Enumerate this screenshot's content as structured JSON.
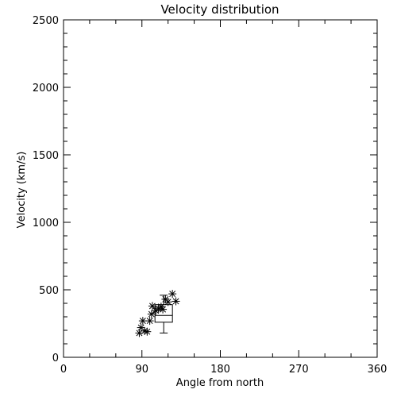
{
  "chart_data": {
    "type": "scatter",
    "title": "Velocity distribution",
    "xlabel": "Angle from north",
    "ylabel": "Velocity (km/s)",
    "xlim": [
      0,
      360
    ],
    "ylim": [
      0,
      2500
    ],
    "xticks": [
      "0",
      "90",
      "180",
      "270",
      "360"
    ],
    "yticks": [
      "0",
      "500",
      "1000",
      "1500",
      "2000",
      "2500"
    ],
    "grid": false,
    "marker": "asterisk",
    "points": [
      {
        "x": 87,
        "y": 180
      },
      {
        "x": 89,
        "y": 220
      },
      {
        "x": 91,
        "y": 270
      },
      {
        "x": 93,
        "y": 195
      },
      {
        "x": 96,
        "y": 190
      },
      {
        "x": 99,
        "y": 270
      },
      {
        "x": 101,
        "y": 320
      },
      {
        "x": 102,
        "y": 380
      },
      {
        "x": 106,
        "y": 345
      },
      {
        "x": 109,
        "y": 360
      },
      {
        "x": 112,
        "y": 375
      },
      {
        "x": 114,
        "y": 355
      },
      {
        "x": 117,
        "y": 430
      },
      {
        "x": 120,
        "y": 410
      },
      {
        "x": 125,
        "y": 470
      },
      {
        "x": 129,
        "y": 415
      }
    ],
    "boxplot": {
      "x": 115,
      "whisker_low": 180,
      "q1": 260,
      "median": 310,
      "q3": 390,
      "whisker_high": 460
    }
  }
}
